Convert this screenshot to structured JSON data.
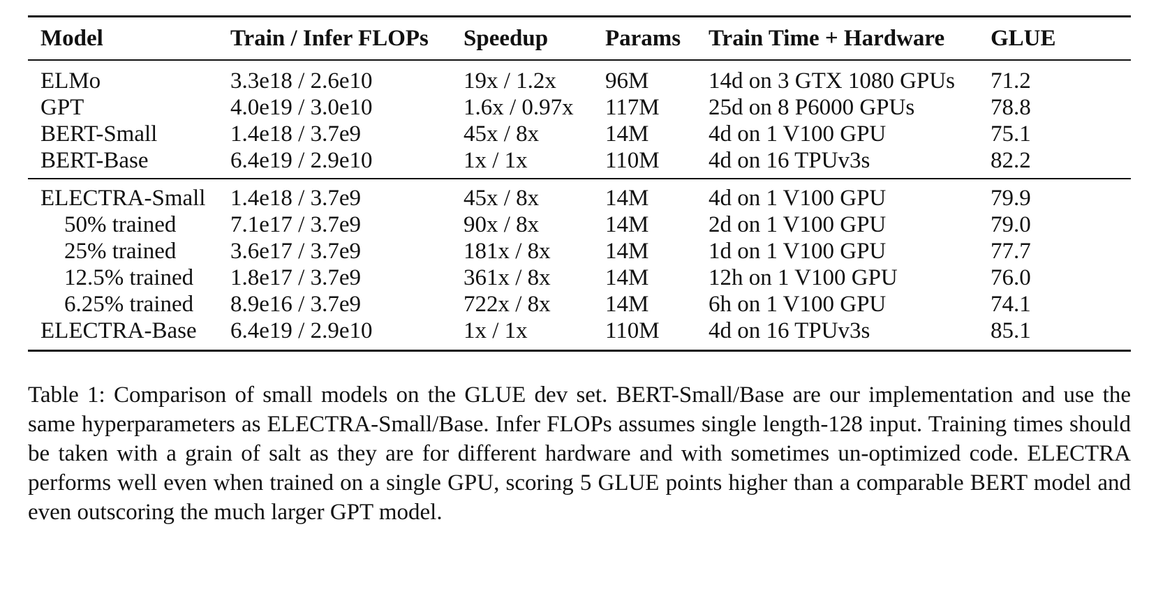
{
  "table": {
    "columns": [
      "Model",
      "Train / Infer FLOPs",
      "Speedup",
      "Params",
      "Train Time + Hardware",
      "GLUE"
    ],
    "group1": [
      [
        "ELMo",
        "3.3e18 / 2.6e10",
        "19x / 1.2x",
        "96M",
        "14d on 3 GTX 1080 GPUs",
        "71.2"
      ],
      [
        "GPT",
        "4.0e19 / 3.0e10",
        "1.6x / 0.97x",
        "117M",
        "25d on 8 P6000 GPUs",
        "78.8"
      ],
      [
        "BERT-Small",
        "1.4e18 / 3.7e9",
        "45x / 8x",
        "14M",
        "4d on 1 V100 GPU",
        "75.1"
      ],
      [
        "BERT-Base",
        "6.4e19 / 2.9e10",
        "1x / 1x",
        "110M",
        "4d on 16 TPUv3s",
        "82.2"
      ]
    ],
    "group2": [
      [
        "ELECTRA-Small",
        "1.4e18 / 3.7e9",
        "45x / 8x",
        "14M",
        "4d on 1 V100 GPU",
        "79.9"
      ],
      [
        "50% trained",
        "7.1e17 / 3.7e9",
        "90x / 8x",
        "14M",
        "2d on 1 V100 GPU",
        "79.0"
      ],
      [
        "25% trained",
        "3.6e17 / 3.7e9",
        "181x / 8x",
        "14M",
        "1d on 1 V100 GPU",
        "77.7"
      ],
      [
        "12.5% trained",
        "1.8e17 / 3.7e9",
        "361x / 8x",
        "14M",
        "12h on 1 V100 GPU",
        "76.0"
      ],
      [
        "6.25% trained",
        "8.9e16 / 3.7e9",
        "722x / 8x",
        "14M",
        "6h on 1 V100 GPU",
        "74.1"
      ],
      [
        "ELECTRA-Base",
        "6.4e19 / 2.9e10",
        "1x / 1x",
        "110M",
        "4d on 16 TPUv3s",
        "85.1"
      ]
    ]
  },
  "caption": "Table 1: Comparison of small models on the GLUE dev set. BERT-Small/Base are our implementation and use the same hyperparameters as ELECTRA-Small/Base. Infer FLOPs assumes single length-128 input. Training times should be taken with a grain of salt as they are for different hardware and with sometimes un-optimized code. ELECTRA performs well even when trained on a single GPU, scoring 5 GLUE points higher than a comparable BERT model and even outscoring the much larger GPT model."
}
